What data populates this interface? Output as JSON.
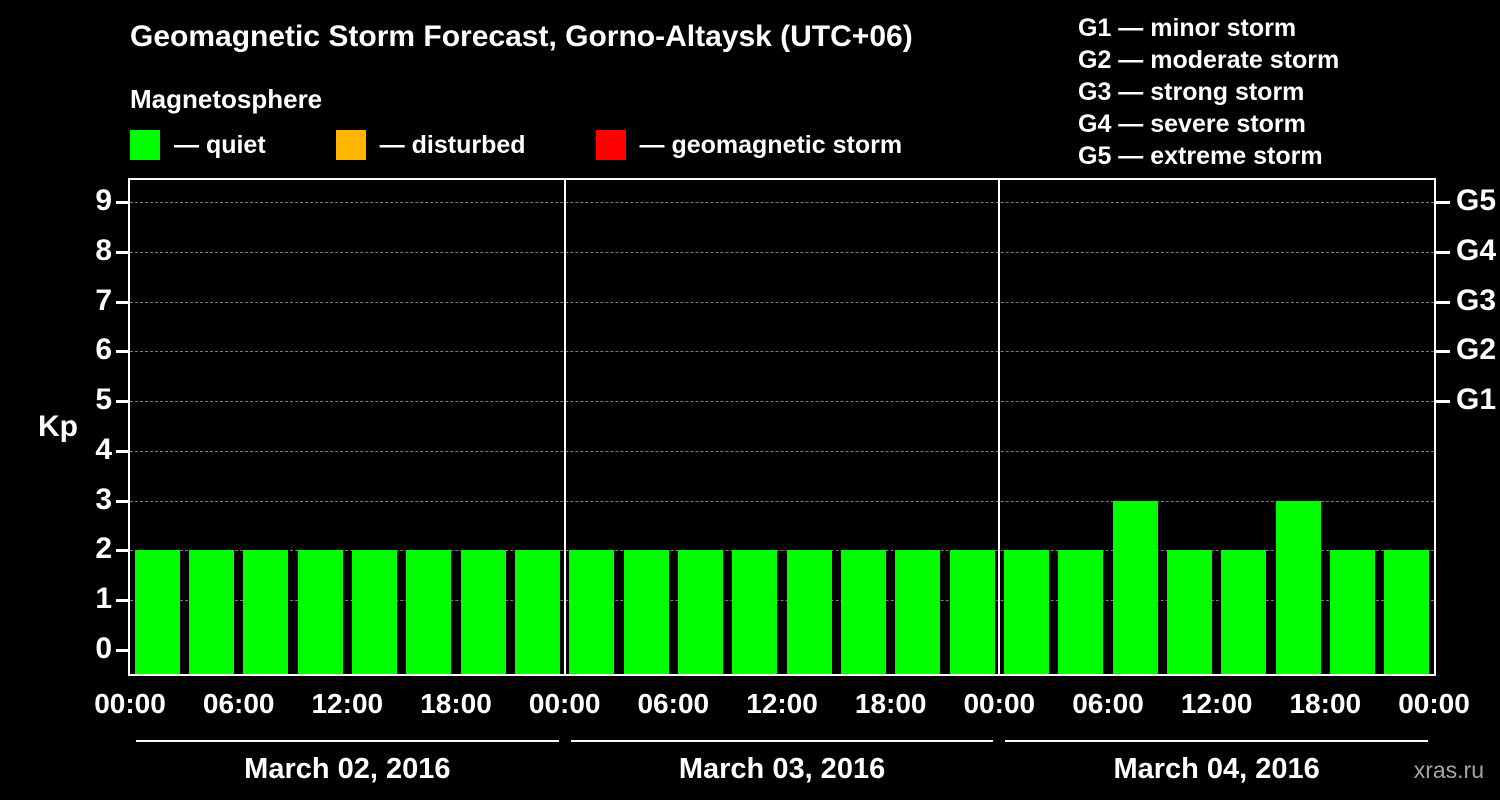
{
  "title": "Geomagnetic Storm Forecast, Gorno-Altaysk (UTC+06)",
  "subtitle": "Magnetosphere",
  "legend": {
    "items": [
      {
        "label": "— quiet"
      },
      {
        "label": "— disturbed"
      },
      {
        "label": "— geomagnetic storm"
      }
    ]
  },
  "g_legend": [
    "G1 — minor storm",
    "G2 — moderate storm",
    "G3 — strong storm",
    "G4 — severe storm",
    "G5 — extreme storm"
  ],
  "watermark": "xras.ru",
  "chart_data": {
    "type": "bar",
    "title": "Geomagnetic Storm Forecast, Gorno-Altaysk (UTC+06)",
    "ylabel": "Kp",
    "ylim": [
      0,
      9
    ],
    "grid": "horizontal-dashed",
    "bar_interval_hours": 3,
    "y_ticks": [
      0,
      1,
      2,
      3,
      4,
      5,
      6,
      7,
      8,
      9
    ],
    "right_ticks": [
      {
        "value": 5,
        "label": "G1"
      },
      {
        "value": 6,
        "label": "G2"
      },
      {
        "value": 7,
        "label": "G3"
      },
      {
        "value": 8,
        "label": "G4"
      },
      {
        "value": 9,
        "label": "G5"
      }
    ],
    "x_tick_labels": [
      "00:00",
      "06:00",
      "12:00",
      "18:00",
      "00:00",
      "06:00",
      "12:00",
      "18:00",
      "00:00",
      "06:00",
      "12:00",
      "18:00",
      "00:00"
    ],
    "days": [
      {
        "label": "March 02, 2016",
        "values": [
          2,
          2,
          2,
          2,
          2,
          2,
          2,
          2
        ]
      },
      {
        "label": "March 03, 2016",
        "values": [
          2,
          2,
          2,
          2,
          2,
          2,
          2,
          2
        ]
      },
      {
        "label": "March 04, 2016",
        "values": [
          2,
          2,
          3,
          2,
          2,
          3,
          2,
          2
        ]
      }
    ],
    "colors": {
      "quiet": "#00ff00",
      "disturbed": "#ffb400",
      "storm": "#ff0000"
    }
  }
}
